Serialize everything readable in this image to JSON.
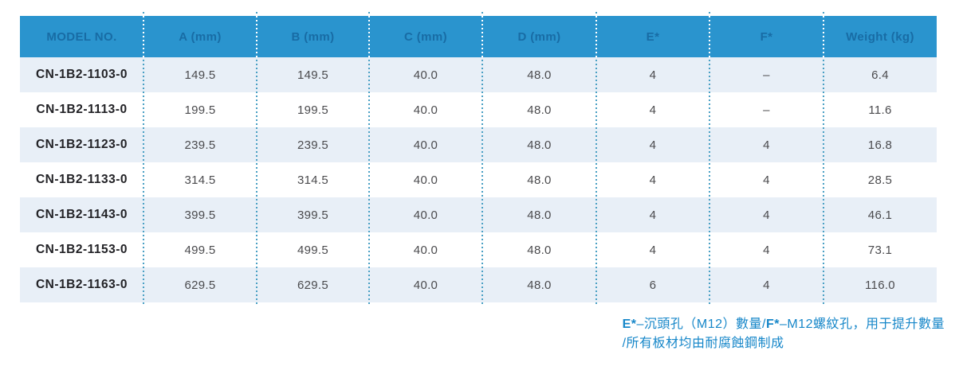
{
  "table": {
    "columns": [
      {
        "key": "model",
        "label": "MODEL NO."
      },
      {
        "key": "a",
        "label": "A (mm)"
      },
      {
        "key": "b",
        "label": "B (mm)"
      },
      {
        "key": "c",
        "label": "C (mm)"
      },
      {
        "key": "d",
        "label": "D (mm)"
      },
      {
        "key": "e",
        "label": "E*"
      },
      {
        "key": "f",
        "label": "F*"
      },
      {
        "key": "weight",
        "label": "Weight (kg)"
      }
    ],
    "rows": [
      [
        "CN-1B2-1103-0",
        "149.5",
        "149.5",
        "40.0",
        "48.0",
        "4",
        "–",
        "6.4"
      ],
      [
        "CN-1B2-1113-0",
        "199.5",
        "199.5",
        "40.0",
        "48.0",
        "4",
        "–",
        "11.6"
      ],
      [
        "CN-1B2-1123-0",
        "239.5",
        "239.5",
        "40.0",
        "48.0",
        "4",
        "4",
        "16.8"
      ],
      [
        "CN-1B2-1133-0",
        "314.5",
        "314.5",
        "40.0",
        "48.0",
        "4",
        "4",
        "28.5"
      ],
      [
        "CN-1B2-1143-0",
        "399.5",
        "399.5",
        "40.0",
        "48.0",
        "4",
        "4",
        "46.1"
      ],
      [
        "CN-1B2-1153-0",
        "499.5",
        "499.5",
        "40.0",
        "48.0",
        "4",
        "4",
        "73.1"
      ],
      [
        "CN-1B2-1163-0",
        "629.5",
        "629.5",
        "40.0",
        "48.0",
        "6",
        "4",
        "116.0"
      ]
    ]
  },
  "footnote": {
    "lines": [
      [
        {
          "text": "E*",
          "bold": true
        },
        {
          "text": "–沉頭孔（M12）數量/",
          "bold": false
        },
        {
          "text": "F*",
          "bold": true
        },
        {
          "text": "–M12螺紋孔，用于提升數量",
          "bold": false
        }
      ],
      [
        {
          "text": "/所有板材均由耐腐蝕鋼制成",
          "bold": false
        }
      ]
    ]
  },
  "colors": {
    "header_bg": "#2A94CE",
    "header_text": "#186CA5",
    "row_alt_bg": "#E8EFF7",
    "row_bg": "#FFFFFF",
    "model_text": "#222226",
    "cell_text": "#4B4B4E",
    "separator_body": "#4AA0C4",
    "separator_header": "#FFFFFF",
    "footnote_text": "#1787C9"
  }
}
